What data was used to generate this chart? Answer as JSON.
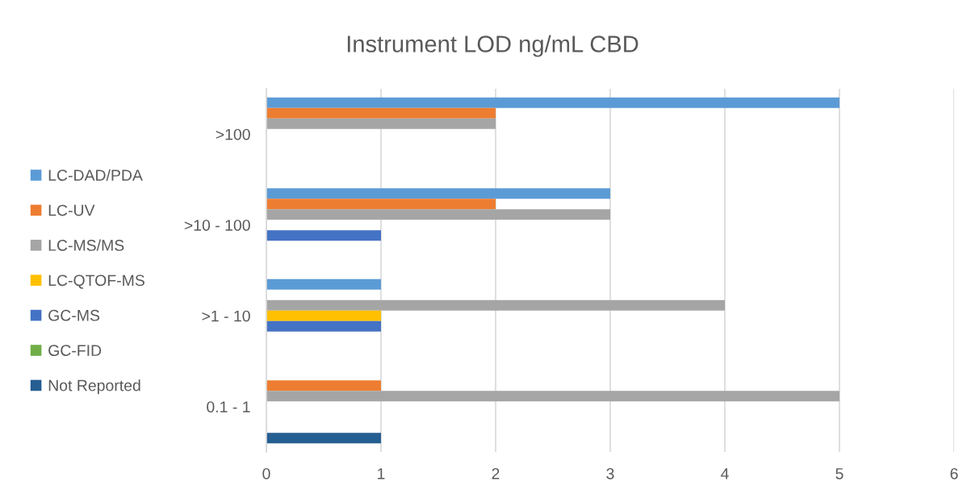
{
  "chart_data": {
    "type": "bar",
    "orientation": "horizontal",
    "title": "Instrument LOD ng/mL CBD",
    "categories": [
      ">100",
      ">10 - 100",
      ">1 - 10",
      "0.1 - 1"
    ],
    "series": [
      {
        "name": "LC-DAD/PDA",
        "color": "#5b9bd5",
        "values": [
          5,
          3,
          1,
          null
        ]
      },
      {
        "name": "LC-UV",
        "color": "#ed7d31",
        "values": [
          2,
          2,
          null,
          1
        ]
      },
      {
        "name": "LC-MS/MS",
        "color": "#a5a5a5",
        "values": [
          2,
          3,
          4,
          5
        ]
      },
      {
        "name": "LC-QTOF-MS",
        "color": "#ffc000",
        "values": [
          null,
          null,
          1,
          null
        ]
      },
      {
        "name": "GC-MS",
        "color": "#4472c4",
        "values": [
          null,
          1,
          1,
          null
        ]
      },
      {
        "name": "GC-FID",
        "color": "#70ad47",
        "values": [
          null,
          null,
          null,
          null
        ]
      },
      {
        "name": "Not Reported",
        "color": "#255e91",
        "values": [
          null,
          null,
          null,
          1
        ]
      }
    ],
    "xlim": [
      0,
      6
    ],
    "xticks": [
      0,
      1,
      2,
      3,
      4,
      5,
      6
    ],
    "grid": "x",
    "legend": "left"
  }
}
